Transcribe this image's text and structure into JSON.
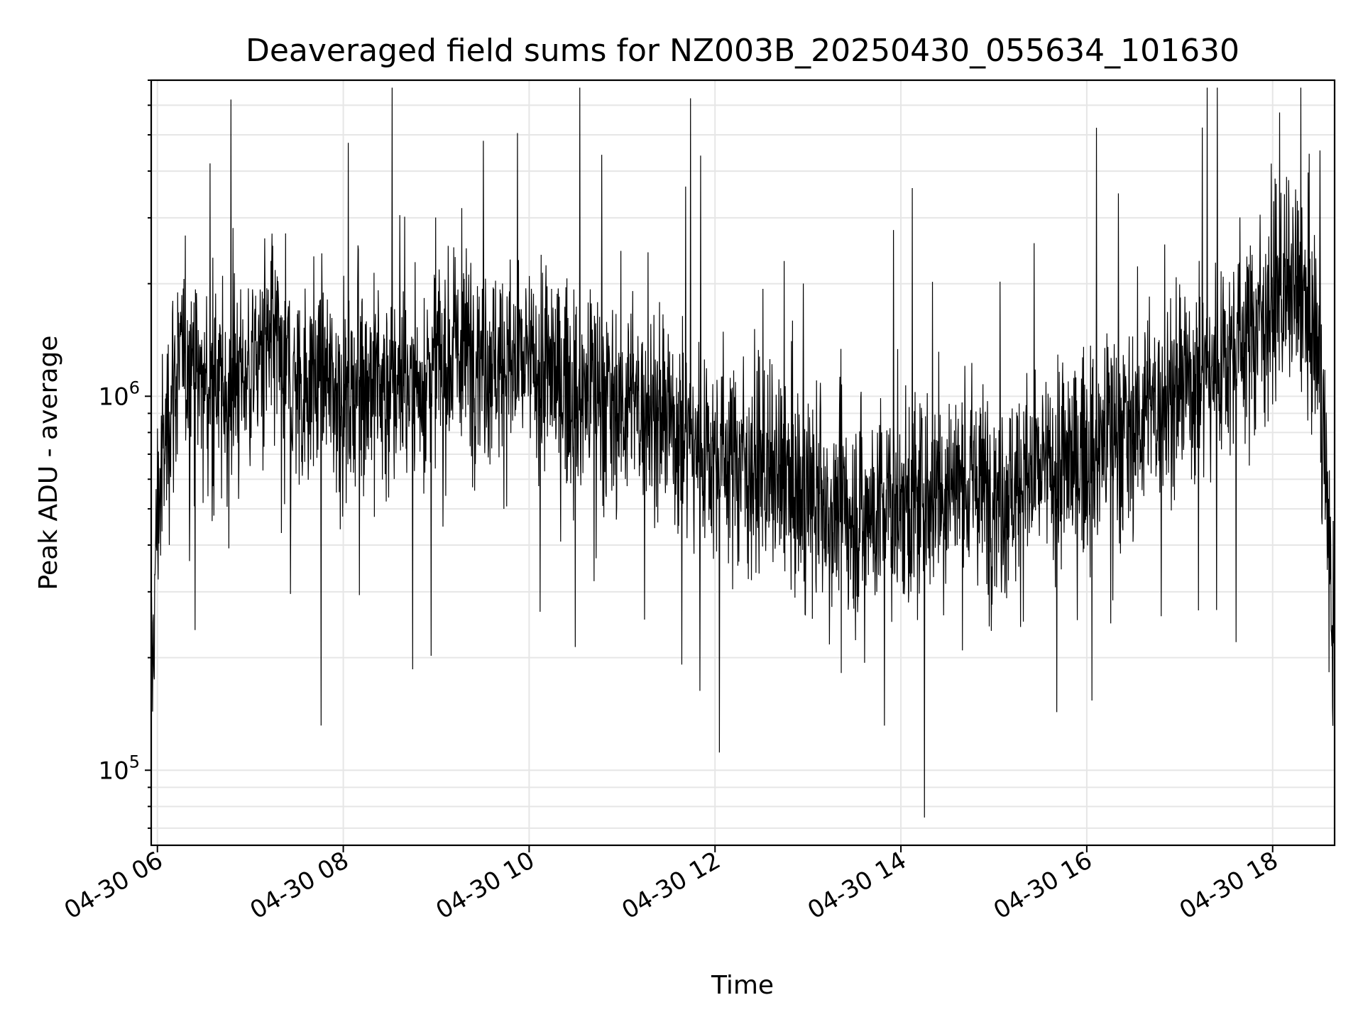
{
  "chart_data": {
    "type": "line",
    "title": "Deaveraged field sums for NZ003B_20250430_055634_101630",
    "xlabel": "Time",
    "ylabel": "Peak ADU - average",
    "xscale": "time",
    "yscale": "log",
    "xlim": [
      "2025-04-30T05:56",
      "2025-04-30T18:40"
    ],
    "ylim": [
      63000,
      7000000
    ],
    "x_ticks": [
      "04-30 06",
      "04-30 08",
      "04-30 10",
      "04-30 12",
      "04-30 14",
      "04-30 16",
      "04-30 18"
    ],
    "y_ticks": [
      {
        "value": 100000,
        "base": "10",
        "exp": "5"
      },
      {
        "value": 1000000,
        "base": "10",
        "exp": "6"
      }
    ],
    "grid": true,
    "legend": "none",
    "color": "#000000",
    "series": [
      {
        "x": [
          "2025-04-30T05:56",
          "2025-04-30T06:00",
          "2025-04-30T06:10",
          "2025-04-30T06:20",
          "2025-04-30T06:30",
          "2025-04-30T06:45",
          "2025-04-30T07:00",
          "2025-04-30T07:15",
          "2025-04-30T07:30",
          "2025-04-30T07:45",
          "2025-04-30T08:00",
          "2025-04-30T08:15",
          "2025-04-30T08:30",
          "2025-04-30T08:45",
          "2025-04-30T09:00",
          "2025-04-30T09:15",
          "2025-04-30T09:30",
          "2025-04-30T09:45",
          "2025-04-30T10:00",
          "2025-04-30T10:15",
          "2025-04-30T10:30",
          "2025-04-30T10:45",
          "2025-04-30T11:00",
          "2025-04-30T11:15",
          "2025-04-30T11:30",
          "2025-04-30T11:45",
          "2025-04-30T12:00",
          "2025-04-30T12:15",
          "2025-04-30T12:30",
          "2025-04-30T12:45",
          "2025-04-30T13:00",
          "2025-04-30T13:15",
          "2025-04-30T13:30",
          "2025-04-30T13:45",
          "2025-04-30T14:00",
          "2025-04-30T14:15",
          "2025-04-30T14:30",
          "2025-04-30T14:45",
          "2025-04-30T15:00",
          "2025-04-30T15:15",
          "2025-04-30T15:30",
          "2025-04-30T15:45",
          "2025-04-30T16:00",
          "2025-04-30T16:15",
          "2025-04-30T16:30",
          "2025-04-30T16:45",
          "2025-04-30T17:00",
          "2025-04-30T17:15",
          "2025-04-30T17:30",
          "2025-04-30T17:45",
          "2025-04-30T18:00",
          "2025-04-30T18:15",
          "2025-04-30T18:30",
          "2025-04-30T18:40"
        ],
        "values": [
          150000,
          500000,
          1100000,
          1300000,
          1050000,
          1000000,
          1200000,
          1350000,
          1050000,
          1150000,
          1000000,
          1100000,
          1050000,
          1050000,
          1250000,
          1300000,
          1350000,
          1200000,
          1200000,
          1150000,
          1000000,
          1050000,
          950000,
          950000,
          850000,
          780000,
          700000,
          700000,
          620000,
          580000,
          520000,
          500000,
          480000,
          500000,
          520000,
          530000,
          600000,
          580000,
          560000,
          580000,
          620000,
          640000,
          700000,
          800000,
          850000,
          950000,
          1050000,
          1150000,
          1300000,
          1500000,
          1800000,
          1900000,
          1350000,
          180000
        ]
      }
    ]
  }
}
